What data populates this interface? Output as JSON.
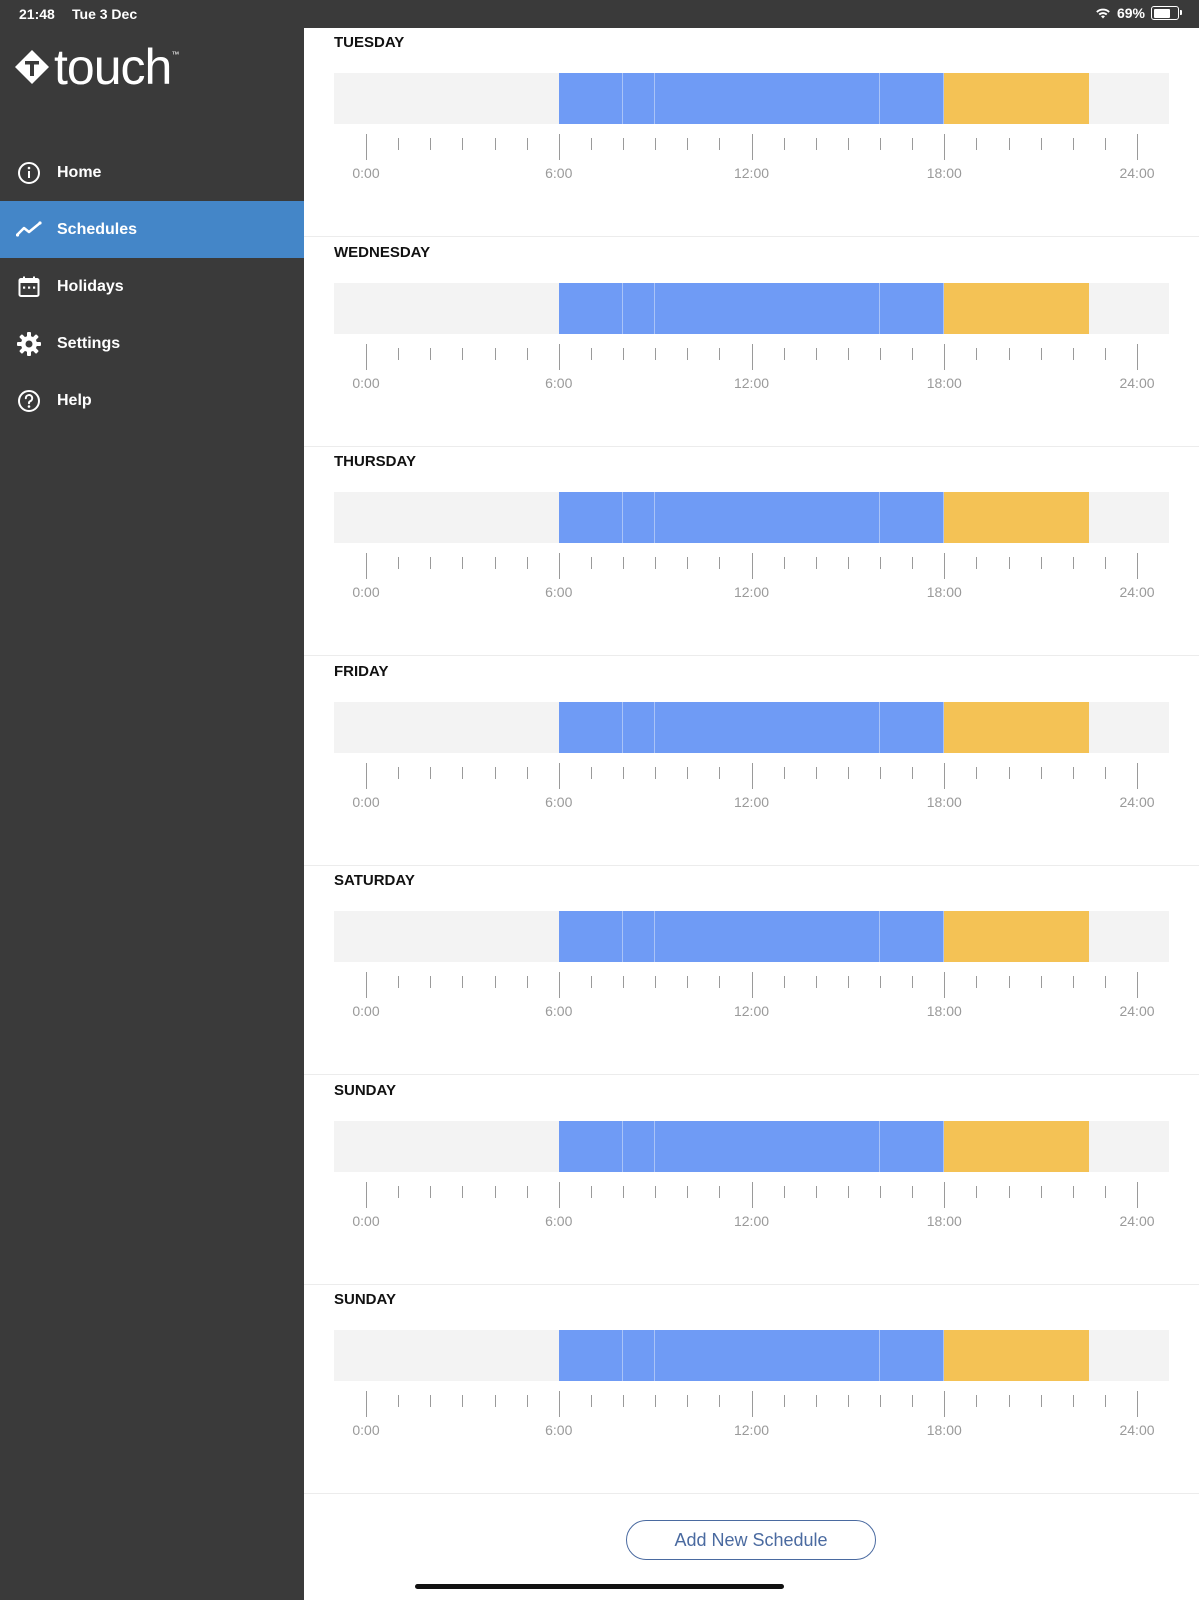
{
  "status_bar": {
    "time": "21:48",
    "date": "Tue 3 Dec",
    "battery": "69%",
    "battery_level": 0.69
  },
  "app": {
    "name": "touch",
    "trademark": "™"
  },
  "nav": [
    {
      "label": "Home",
      "icon": "info-icon",
      "active": false
    },
    {
      "label": "Schedules",
      "icon": "chart-line-icon",
      "active": true
    },
    {
      "label": "Holidays",
      "icon": "calendar-icon",
      "active": false
    },
    {
      "label": "Settings",
      "icon": "gear-icon",
      "active": false
    },
    {
      "label": "Help",
      "icon": "help-icon",
      "active": false
    }
  ],
  "axis_labels": [
    "0:00",
    "6:00",
    "12:00",
    "18:00",
    "24:00"
  ],
  "colors": {
    "heat": "#6f9bf5",
    "setback": "#f4c255",
    "track": "#f3f3f3",
    "active_nav": "#4486c8",
    "sidebar": "#3a3a3a"
  },
  "schedule": {
    "periods": [
      {
        "start": 6,
        "end": 8,
        "type": "heat"
      },
      {
        "start": 8,
        "end": 9,
        "type": "heat"
      },
      {
        "start": 9,
        "end": 16,
        "type": "heat"
      },
      {
        "start": 16,
        "end": 18,
        "type": "heat"
      },
      {
        "start": 18,
        "end": 22.5,
        "type": "setback"
      }
    ]
  },
  "days": [
    "TUESDAY",
    "WEDNESDAY",
    "THURSDAY",
    "FRIDAY",
    "SATURDAY",
    "SUNDAY",
    "SUNDAY"
  ],
  "add_button": "Add New Schedule"
}
